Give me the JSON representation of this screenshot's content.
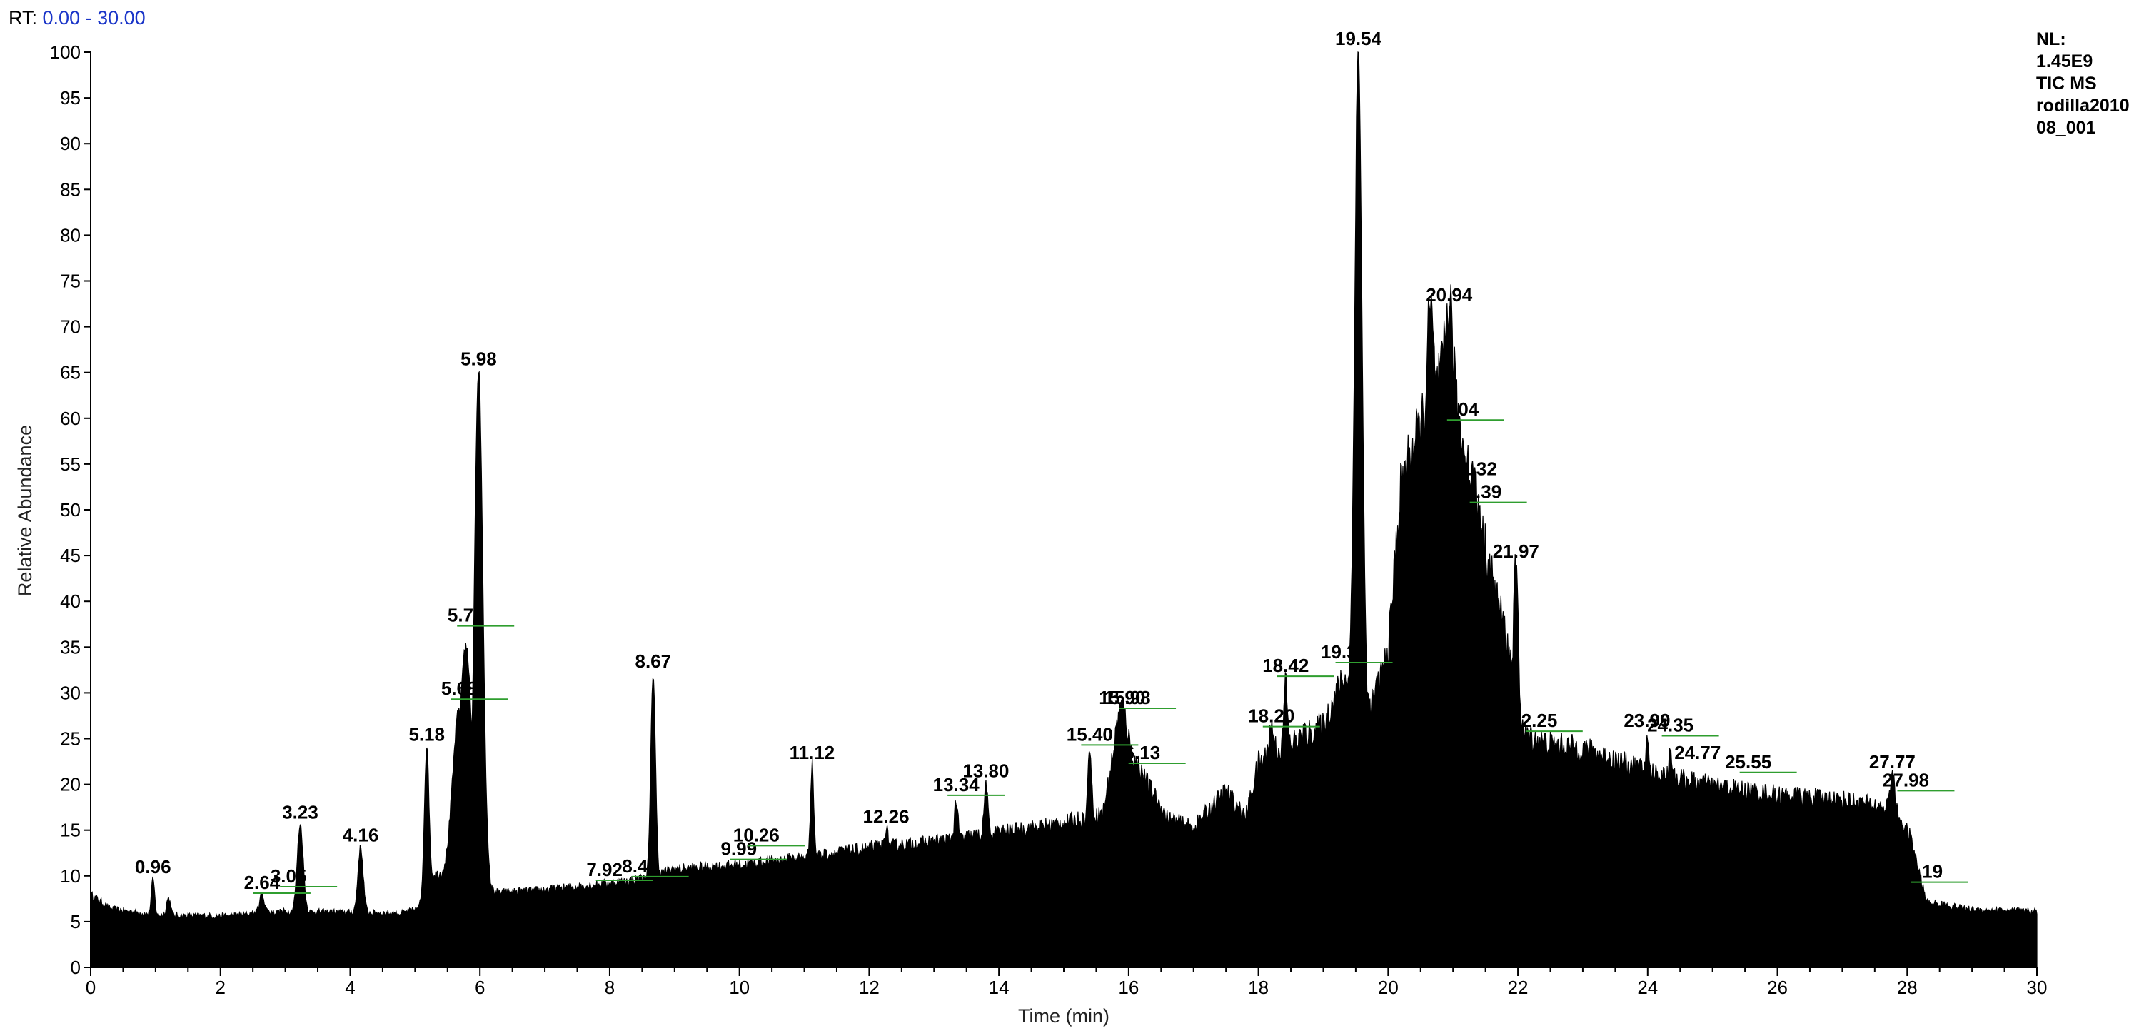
{
  "header": {
    "rt_label": "RT:",
    "rt_range": "0.00 - 30.00"
  },
  "info": {
    "lines": [
      "NL:",
      "1.45E9",
      "TIC MS",
      "rodilla2010",
      "08_001"
    ]
  },
  "chart_data": {
    "type": "line",
    "xlabel": "Time (min)",
    "ylabel": "Relative Abundance",
    "xlim": [
      0,
      30
    ],
    "ylim": [
      0,
      100
    ],
    "x_ticks": [
      0,
      2,
      4,
      6,
      8,
      10,
      12,
      14,
      16,
      18,
      20,
      22,
      24,
      26,
      28,
      30
    ],
    "y_ticks": [
      0,
      5,
      10,
      15,
      20,
      25,
      30,
      35,
      40,
      45,
      50,
      55,
      60,
      65,
      70,
      75,
      80,
      85,
      90,
      95,
      100
    ],
    "fill": true,
    "colors": {
      "trace": "#000000",
      "axis": "#000000",
      "peak_marker": "#2f9e2f",
      "rt_value": "#1a35c8"
    },
    "baseline": [
      [
        0,
        7.8
      ],
      [
        0.3,
        6.3
      ],
      [
        1,
        5.6
      ],
      [
        2,
        5.5
      ],
      [
        2.6,
        5.8
      ],
      [
        3,
        6
      ],
      [
        4,
        5.9
      ],
      [
        4.8,
        5.8
      ],
      [
        5.05,
        6.3
      ],
      [
        5.3,
        10
      ],
      [
        6.3,
        8
      ],
      [
        7,
        8.3
      ],
      [
        8,
        9
      ],
      [
        8.5,
        9.5
      ],
      [
        9,
        10.5
      ],
      [
        10,
        11
      ],
      [
        11,
        11.8
      ],
      [
        12,
        12.8
      ],
      [
        13,
        13.5
      ],
      [
        14,
        14.5
      ],
      [
        15,
        15.5
      ],
      [
        15.6,
        16.5
      ],
      [
        15.85,
        26
      ],
      [
        16.1,
        22
      ],
      [
        16.6,
        16
      ],
      [
        17,
        15
      ],
      [
        17.5,
        19
      ],
      [
        17.8,
        16
      ],
      [
        18,
        22
      ],
      [
        18.5,
        24
      ],
      [
        19,
        26
      ],
      [
        19.3,
        31
      ],
      [
        19.7,
        27
      ],
      [
        20,
        34
      ],
      [
        20.2,
        52
      ],
      [
        20.4,
        56
      ],
      [
        20.6,
        60
      ],
      [
        20.9,
        64
      ],
      [
        21.2,
        55
      ],
      [
        21.5,
        45
      ],
      [
        21.8,
        36
      ],
      [
        22.1,
        25
      ],
      [
        22.5,
        24
      ],
      [
        23,
        23.5
      ],
      [
        24,
        21
      ],
      [
        25,
        19.5
      ],
      [
        26,
        18.5
      ],
      [
        27,
        18
      ],
      [
        27.8,
        17
      ],
      [
        28.05,
        14
      ],
      [
        28.3,
        7
      ],
      [
        29,
        6.2
      ],
      [
        30,
        6
      ]
    ],
    "peaks": [
      {
        "rt": 0.96,
        "h": 9.5,
        "w": 0.025
      },
      {
        "rt": 1.2,
        "h": 7.5,
        "w": 0.03
      },
      {
        "rt": 2.64,
        "h": 7.8,
        "w": 0.04
      },
      {
        "rt": 3.23,
        "h": 15.5,
        "w": 0.045
      },
      {
        "rt": 4.16,
        "h": 13,
        "w": 0.04
      },
      {
        "rt": 5.18,
        "h": 24,
        "w": 0.035
      },
      {
        "rt": 5.68,
        "h": 28,
        "w": 0.1
      },
      {
        "rt": 5.78,
        "h": 35,
        "w": 0.1
      },
      {
        "rt": 5.98,
        "h": 65,
        "w": 0.065
      },
      {
        "rt": 8.67,
        "h": 32,
        "w": 0.035
      },
      {
        "rt": 11.12,
        "h": 22,
        "w": 0.025
      },
      {
        "rt": 12.26,
        "h": 15,
        "w": 0.025
      },
      {
        "rt": 13.34,
        "h": 18,
        "w": 0.025
      },
      {
        "rt": 13.8,
        "h": 20,
        "w": 0.025
      },
      {
        "rt": 15.4,
        "h": 24,
        "w": 0.025
      },
      {
        "rt": 15.9,
        "h": 28,
        "w": 0.06
      },
      {
        "rt": 16.13,
        "h": 22,
        "w": 0.04
      },
      {
        "rt": 18.2,
        "h": 26,
        "w": 0.04
      },
      {
        "rt": 18.42,
        "h": 31,
        "w": 0.025
      },
      {
        "rt": 19.54,
        "h": 100,
        "w": 0.055
      },
      {
        "rt": 20.65,
        "h": 71,
        "w": 0.04
      },
      {
        "rt": 20.94,
        "h": 72,
        "w": 0.05
      },
      {
        "rt": 21.04,
        "h": 59,
        "w": 0.04
      },
      {
        "rt": 21.32,
        "h": 53,
        "w": 0.025
      },
      {
        "rt": 21.39,
        "h": 50,
        "w": 0.025
      },
      {
        "rt": 21.97,
        "h": 44,
        "w": 0.03
      },
      {
        "rt": 23.99,
        "h": 25,
        "w": 0.02
      },
      {
        "rt": 24.35,
        "h": 24,
        "w": 0.02
      },
      {
        "rt": 27.77,
        "h": 21,
        "w": 0.03
      }
    ],
    "peak_labels": [
      {
        "text": "0.96",
        "rt": 0.96,
        "y": 9.5,
        "marker": false
      },
      {
        "text": "2.64",
        "rt": 2.64,
        "y": 7.8,
        "marker": true
      },
      {
        "text": "3.05",
        "rt": 3.05,
        "y": 8.5,
        "marker": true
      },
      {
        "text": "3.23",
        "rt": 3.23,
        "y": 15.5,
        "marker": false
      },
      {
        "text": "4.16",
        "rt": 4.16,
        "y": 13,
        "marker": false
      },
      {
        "text": "5.18",
        "rt": 5.18,
        "y": 24,
        "marker": false
      },
      {
        "text": "5.68",
        "rt": 5.68,
        "y": 29,
        "marker": true
      },
      {
        "text": "5.78",
        "rt": 5.78,
        "y": 37,
        "marker": true
      },
      {
        "text": "5.98",
        "rt": 5.98,
        "y": 65,
        "marker": false
      },
      {
        "text": "7.92",
        "rt": 7.92,
        "y": 9.2,
        "marker": true
      },
      {
        "text": "8.47",
        "rt": 8.47,
        "y": 9.6,
        "marker": true
      },
      {
        "text": "8.67",
        "rt": 8.67,
        "y": 32,
        "marker": false
      },
      {
        "text": "9.99",
        "rt": 9.99,
        "y": 11.5,
        "marker": true
      },
      {
        "text": "10.26",
        "rt": 10.26,
        "y": 13,
        "marker": true
      },
      {
        "text": "11.12",
        "rt": 11.12,
        "y": 22,
        "marker": false
      },
      {
        "text": "12.26",
        "rt": 12.26,
        "y": 15,
        "marker": false
      },
      {
        "text": "13.34",
        "rt": 13.34,
        "y": 18.5,
        "marker": true
      },
      {
        "text": "13.80",
        "rt": 13.8,
        "y": 20,
        "marker": false
      },
      {
        "text": "15.40",
        "rt": 15.4,
        "y": 24,
        "marker": true
      },
      {
        "text": "15.90",
        "rt": 15.9,
        "y": 28,
        "marker": false
      },
      {
        "text": "15.98",
        "rt": 15.98,
        "y": 28,
        "marker": true
      },
      {
        "text": "16.13",
        "rt": 16.13,
        "y": 22,
        "marker": true
      },
      {
        "text": "18.20",
        "rt": 18.2,
        "y": 26,
        "marker": true
      },
      {
        "text": "18.42",
        "rt": 18.42,
        "y": 31.5,
        "marker": true
      },
      {
        "text": "19.32",
        "rt": 19.32,
        "y": 33,
        "marker": true
      },
      {
        "text": "19.54",
        "rt": 19.54,
        "y": 100,
        "marker": false
      },
      {
        "text": "20.94",
        "rt": 20.94,
        "y": 72,
        "marker": false
      },
      {
        "text": "21.04",
        "rt": 21.04,
        "y": 59.5,
        "marker": true
      },
      {
        "text": "21.32",
        "rt": 21.32,
        "y": 53,
        "marker": false
      },
      {
        "text": "21.39",
        "rt": 21.39,
        "y": 50.5,
        "marker": true
      },
      {
        "text": "21.97",
        "rt": 21.97,
        "y": 44,
        "marker": false
      },
      {
        "text": "22.25",
        "rt": 22.25,
        "y": 25.5,
        "marker": true
      },
      {
        "text": "23.99",
        "rt": 23.99,
        "y": 25.5,
        "marker": false
      },
      {
        "text": "24.35",
        "rt": 24.35,
        "y": 25,
        "marker": true
      },
      {
        "text": "24.77",
        "rt": 24.77,
        "y": 22,
        "marker": false
      },
      {
        "text": "25.55",
        "rt": 25.55,
        "y": 21,
        "marker": true
      },
      {
        "text": "27.77",
        "rt": 27.77,
        "y": 21,
        "marker": false
      },
      {
        "text": "27.98",
        "rt": 27.98,
        "y": 19,
        "marker": true
      },
      {
        "text": "28.19",
        "rt": 28.19,
        "y": 9,
        "marker": true
      }
    ]
  }
}
